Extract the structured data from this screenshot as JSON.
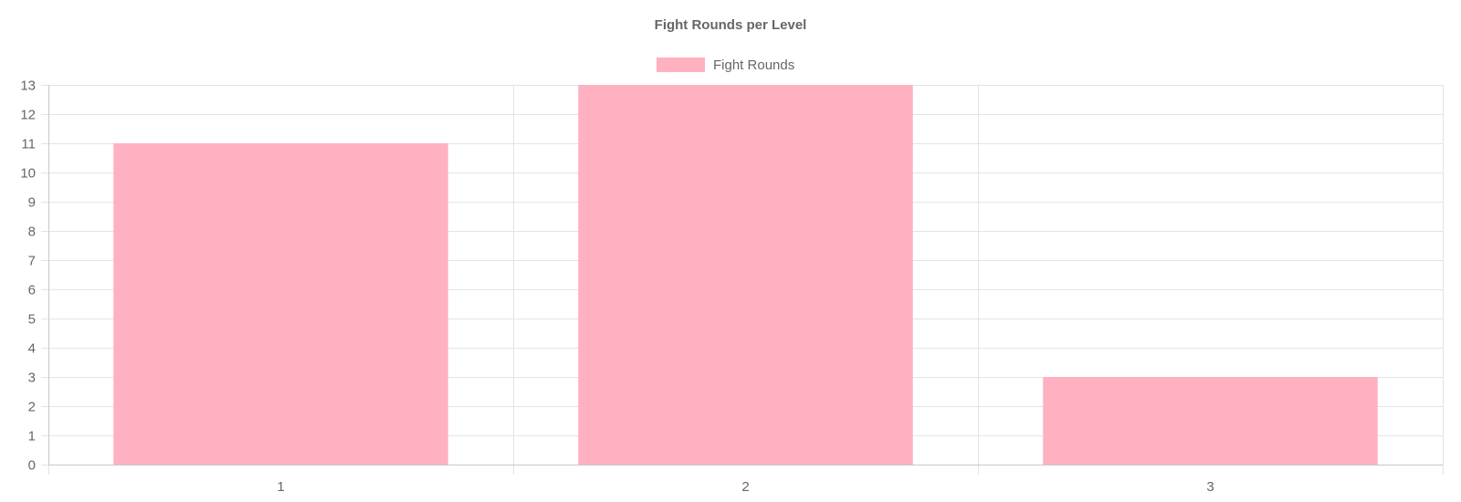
{
  "chart_data": {
    "type": "bar",
    "title": "Fight Rounds per Level",
    "categories": [
      "1",
      "2",
      "3"
    ],
    "series": [
      {
        "name": "Fight Rounds",
        "values": [
          11,
          13,
          3
        ],
        "color": "#ffb1c1"
      }
    ],
    "xlabel": "",
    "ylabel": "",
    "ylim": [
      0,
      13
    ],
    "y_ticks": [
      0,
      1,
      2,
      3,
      4,
      5,
      6,
      7,
      8,
      9,
      10,
      11,
      12,
      13
    ],
    "grid": true,
    "legend_position": "top-center"
  }
}
